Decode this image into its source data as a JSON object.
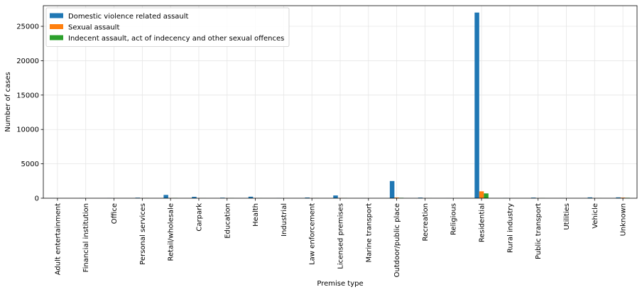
{
  "chart_data": {
    "type": "bar",
    "title": "",
    "xlabel": "Premise type",
    "ylabel": "Number of cases",
    "ylim": [
      0,
      28000
    ],
    "yticks": [
      0,
      5000,
      10000,
      15000,
      20000,
      25000
    ],
    "grid": true,
    "legend_position": "top-left",
    "categories": [
      "Adult entertainment",
      "Financial institution",
      "Office",
      "Personal services",
      "Retail/wholesale",
      "Carpark",
      "Education",
      "Health",
      "Industrial",
      "Law enforcement",
      "Licensed premises",
      "Marine transport",
      "Outdoor/public place",
      "Recreation",
      "Religious",
      "Residential",
      "Rural industry",
      "Public transport",
      "Utilities",
      "Vehicle",
      "Unknown"
    ],
    "series": [
      {
        "name": "Domestic violence related assault",
        "color": "#1f77b4",
        "values": [
          10,
          10,
          20,
          80,
          480,
          200,
          80,
          220,
          20,
          100,
          400,
          10,
          2500,
          90,
          10,
          27000,
          20,
          90,
          10,
          120,
          120
        ]
      },
      {
        "name": "Sexual assault",
        "color": "#ff7f0e",
        "values": [
          0,
          0,
          0,
          10,
          20,
          10,
          10,
          10,
          0,
          10,
          30,
          0,
          100,
          10,
          0,
          1000,
          0,
          10,
          0,
          10,
          90
        ]
      },
      {
        "name": "Indecent assault, act of indecency and other sexual offences",
        "color": "#2ca02c",
        "values": [
          0,
          0,
          0,
          10,
          30,
          10,
          20,
          10,
          0,
          10,
          20,
          0,
          60,
          10,
          0,
          700,
          0,
          20,
          0,
          10,
          60
        ]
      }
    ]
  }
}
